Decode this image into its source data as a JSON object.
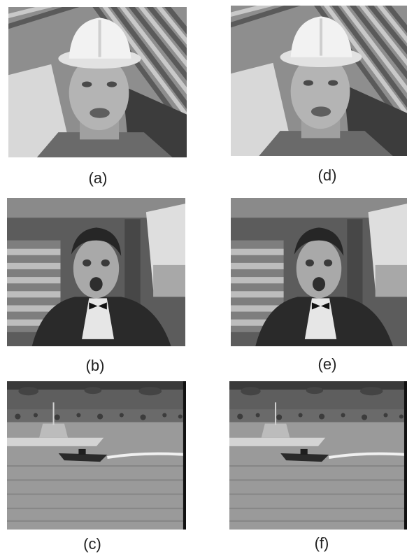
{
  "figure": {
    "panels": [
      {
        "label": "(a)",
        "scene": "man in white hard hat in front of striped building"
      },
      {
        "label": "(b)",
        "scene": "man in tuxedo inside a car"
      },
      {
        "label": "(c)",
        "scene": "boats on water with shoreline"
      },
      {
        "label": "(d)",
        "scene": "man in white hard hat in front of striped building"
      },
      {
        "label": "(e)",
        "scene": "man in tuxedo inside a car"
      },
      {
        "label": "(f)",
        "scene": "boats on water with shoreline"
      }
    ]
  },
  "colors": {
    "background": "#ffffff",
    "caption_text": "#222222",
    "image_tones": "grayscale"
  }
}
